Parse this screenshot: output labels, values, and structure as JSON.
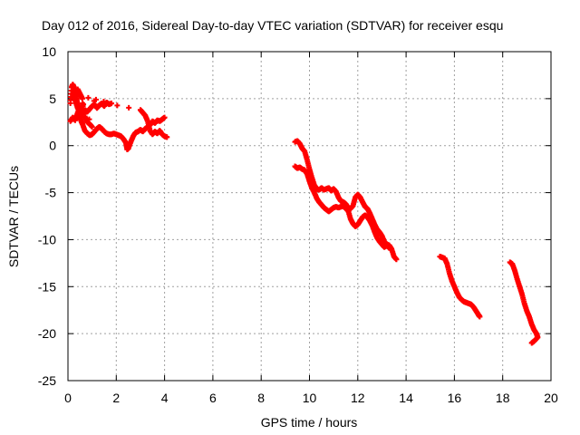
{
  "chart_data": {
    "type": "scatter",
    "title": "Day 012 of 2016, Sidereal Day-to-day VTEC variation (SDTVAR) for receiver esqu",
    "xlabel": "GPS time / hours",
    "ylabel": "SDTVAR / TECUs",
    "xlim": [
      0,
      20
    ],
    "ylim": [
      -25,
      10
    ],
    "xticks": [
      "0",
      "2",
      "4",
      "6",
      "8",
      "10",
      "12",
      "14",
      "16",
      "18",
      "20"
    ],
    "yticks": [
      "10",
      "5",
      "0",
      "-5",
      "-10",
      "-15",
      "-20",
      "-25"
    ],
    "grid": true,
    "marker": "plus",
    "color": "#ff0000",
    "series": [
      {
        "name": "segment-1",
        "points": [
          [
            0.1,
            4.5
          ],
          [
            0.15,
            6.2
          ],
          [
            0.2,
            6.5
          ],
          [
            0.25,
            6.2
          ],
          [
            0.3,
            5.6
          ],
          [
            0.35,
            5.2
          ],
          [
            0.4,
            4.3
          ],
          [
            0.45,
            3.8
          ],
          [
            0.5,
            3.0
          ],
          [
            0.55,
            2.6
          ],
          [
            0.6,
            2.3
          ],
          [
            0.7,
            1.6
          ],
          [
            0.8,
            1.3
          ],
          [
            0.9,
            1.1
          ],
          [
            1.0,
            1.2
          ],
          [
            1.1,
            1.5
          ],
          [
            1.2,
            1.8
          ],
          [
            1.3,
            2.0
          ],
          [
            1.4,
            1.8
          ],
          [
            1.5,
            1.5
          ],
          [
            1.6,
            1.3
          ],
          [
            1.7,
            1.2
          ],
          [
            1.8,
            1.2
          ],
          [
            1.9,
            1.3
          ],
          [
            2.0,
            1.2
          ],
          [
            2.1,
            1.1
          ],
          [
            2.2,
            1.0
          ],
          [
            2.3,
            0.7
          ],
          [
            2.4,
            0.3
          ],
          [
            2.45,
            -0.4
          ],
          [
            2.5,
            -0.3
          ],
          [
            2.6,
            0.4
          ],
          [
            2.7,
            1.0
          ],
          [
            2.8,
            1.4
          ],
          [
            2.9,
            1.5
          ],
          [
            3.0,
            1.7
          ],
          [
            3.1,
            1.5
          ],
          [
            3.2,
            1.8
          ],
          [
            3.3,
            2.0
          ],
          [
            3.4,
            2.2
          ],
          [
            3.5,
            2.6
          ],
          [
            3.6,
            2.4
          ],
          [
            3.7,
            2.7
          ],
          [
            3.8,
            2.6
          ],
          [
            3.9,
            2.8
          ],
          [
            4.0,
            3.0
          ]
        ]
      },
      {
        "name": "segment-1b",
        "points": [
          [
            0.1,
            2.6
          ],
          [
            0.2,
            3.0
          ],
          [
            0.3,
            2.7
          ],
          [
            0.4,
            3.5
          ],
          [
            0.5,
            4.0
          ],
          [
            0.6,
            3.4
          ],
          [
            0.7,
            3.8
          ],
          [
            0.8,
            3.6
          ],
          [
            0.9,
            3.9
          ],
          [
            1.0,
            4.2
          ],
          [
            1.1,
            4.4
          ],
          [
            1.2,
            4.0
          ],
          [
            1.3,
            4.3
          ],
          [
            1.4,
            4.5
          ],
          [
            1.5,
            4.2
          ],
          [
            1.6,
            4.6
          ],
          [
            1.7,
            4.4
          ],
          [
            1.8,
            4.5
          ],
          [
            0.2,
            5.5
          ],
          [
            0.3,
            4.8
          ],
          [
            0.4,
            4.0
          ],
          [
            0.5,
            3.5
          ],
          [
            0.6,
            4.5
          ],
          [
            0.7,
            3.1
          ],
          [
            0.8,
            2.5
          ],
          [
            0.9,
            2.3
          ],
          [
            1.0,
            2.0
          ],
          [
            0.4,
            6.0
          ],
          [
            0.5,
            5.5
          ],
          [
            0.6,
            5.0
          ],
          [
            3.0,
            3.8
          ],
          [
            3.1,
            3.5
          ],
          [
            3.2,
            3.2
          ],
          [
            3.3,
            2.6
          ],
          [
            3.4,
            1.6
          ],
          [
            3.5,
            1.2
          ],
          [
            3.6,
            1.5
          ],
          [
            3.7,
            1.3
          ],
          [
            3.8,
            1.6
          ],
          [
            3.9,
            1.2
          ],
          [
            4.0,
            1.0
          ],
          [
            4.1,
            0.9
          ]
        ]
      },
      {
        "name": "segment-2",
        "points": [
          [
            9.4,
            0.4
          ],
          [
            9.5,
            0.5
          ],
          [
            9.6,
            0.2
          ],
          [
            9.7,
            -0.3
          ],
          [
            9.8,
            -0.6
          ],
          [
            9.9,
            -1.5
          ],
          [
            10.0,
            -2.5
          ],
          [
            10.1,
            -3.4
          ],
          [
            10.2,
            -4.2
          ],
          [
            10.3,
            -4.6
          ],
          [
            10.4,
            -4.7
          ],
          [
            10.5,
            -4.5
          ],
          [
            10.6,
            -4.7
          ],
          [
            10.7,
            -4.6
          ],
          [
            10.8,
            -4.5
          ],
          [
            10.9,
            -4.8
          ],
          [
            11.0,
            -4.6
          ],
          [
            11.1,
            -4.9
          ],
          [
            11.2,
            -5.5
          ],
          [
            11.3,
            -5.9
          ],
          [
            11.4,
            -6.0
          ],
          [
            11.5,
            -6.2
          ],
          [
            11.6,
            -6.6
          ],
          [
            11.7,
            -6.7
          ],
          [
            11.8,
            -6.4
          ],
          [
            11.9,
            -5.5
          ],
          [
            12.0,
            -5.2
          ],
          [
            12.1,
            -5.5
          ],
          [
            12.2,
            -6.0
          ],
          [
            12.3,
            -6.5
          ],
          [
            12.4,
            -6.7
          ],
          [
            12.5,
            -7.2
          ],
          [
            12.6,
            -7.8
          ],
          [
            12.7,
            -8.4
          ],
          [
            12.8,
            -8.9
          ],
          [
            12.9,
            -9.2
          ],
          [
            13.0,
            -9.6
          ],
          [
            13.1,
            -10.2
          ],
          [
            13.2,
            -10.5
          ],
          [
            13.3,
            -10.6
          ],
          [
            13.4,
            -11.0
          ],
          [
            13.5,
            -11.8
          ],
          [
            13.6,
            -12.1
          ]
        ]
      },
      {
        "name": "segment-2b",
        "points": [
          [
            9.4,
            -2.2
          ],
          [
            9.5,
            -2.4
          ],
          [
            9.6,
            -2.3
          ],
          [
            9.7,
            -2.5
          ],
          [
            9.8,
            -2.6
          ],
          [
            9.9,
            -3.0
          ],
          [
            10.0,
            -3.8
          ],
          [
            10.1,
            -4.5
          ],
          [
            10.2,
            -5.0
          ],
          [
            10.3,
            -5.6
          ],
          [
            10.4,
            -6.0
          ],
          [
            10.5,
            -6.3
          ],
          [
            10.6,
            -6.6
          ],
          [
            10.7,
            -6.8
          ],
          [
            10.8,
            -7.0
          ],
          [
            10.9,
            -6.8
          ],
          [
            11.0,
            -6.6
          ],
          [
            11.1,
            -6.5
          ],
          [
            11.2,
            -6.6
          ],
          [
            11.3,
            -6.5
          ],
          [
            11.4,
            -6.4
          ],
          [
            11.5,
            -6.7
          ],
          [
            11.6,
            -6.9
          ],
          [
            11.7,
            -7.8
          ],
          [
            11.8,
            -8.3
          ],
          [
            11.9,
            -8.6
          ],
          [
            12.0,
            -8.4
          ],
          [
            12.1,
            -8.0
          ],
          [
            12.2,
            -7.6
          ],
          [
            12.3,
            -7.4
          ],
          [
            12.4,
            -7.6
          ],
          [
            12.5,
            -8.0
          ],
          [
            12.6,
            -8.5
          ],
          [
            12.7,
            -9.2
          ],
          [
            12.8,
            -9.8
          ],
          [
            12.9,
            -10.2
          ],
          [
            13.0,
            -10.5
          ],
          [
            13.1,
            -10.8
          ],
          [
            13.2,
            -10.6
          ],
          [
            13.3,
            -10.9
          ]
        ]
      },
      {
        "name": "segment-3",
        "points": [
          [
            15.4,
            -11.8
          ],
          [
            15.5,
            -11.9
          ],
          [
            15.6,
            -12.0
          ],
          [
            15.7,
            -12.6
          ],
          [
            15.8,
            -13.6
          ],
          [
            15.9,
            -14.4
          ],
          [
            16.0,
            -15.0
          ],
          [
            16.1,
            -15.6
          ],
          [
            16.2,
            -16.1
          ],
          [
            16.3,
            -16.4
          ],
          [
            16.4,
            -16.6
          ],
          [
            16.5,
            -16.7
          ],
          [
            16.6,
            -16.8
          ],
          [
            16.7,
            -16.9
          ],
          [
            16.8,
            -17.2
          ],
          [
            16.9,
            -17.6
          ],
          [
            17.0,
            -18.0
          ],
          [
            17.05,
            -18.2
          ]
        ]
      },
      {
        "name": "segment-4",
        "points": [
          [
            18.3,
            -12.4
          ],
          [
            18.4,
            -12.6
          ],
          [
            18.5,
            -13.3
          ],
          [
            18.6,
            -14.2
          ],
          [
            18.7,
            -15.0
          ],
          [
            18.8,
            -15.8
          ],
          [
            18.9,
            -16.8
          ],
          [
            19.0,
            -17.6
          ],
          [
            19.1,
            -18.2
          ],
          [
            19.2,
            -19.0
          ],
          [
            19.3,
            -19.6
          ],
          [
            19.4,
            -20.0
          ],
          [
            19.45,
            -20.4
          ],
          [
            19.3,
            -20.8
          ],
          [
            19.2,
            -21.0
          ]
        ]
      }
    ]
  }
}
